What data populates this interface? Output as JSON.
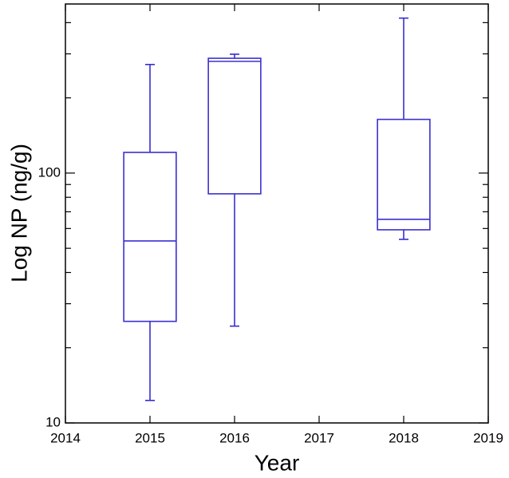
{
  "chart_data": {
    "type": "box",
    "x_label": "Year",
    "y_label": "Log NP (ng/g)",
    "x": [
      2015,
      2016,
      2018
    ],
    "min": [
      12.3,
      24.4,
      54.3
    ],
    "q1": [
      25.5,
      82.6,
      59.3
    ],
    "median": [
      53.5,
      280,
      65.3
    ],
    "q3": [
      121,
      288,
      164
    ],
    "max": [
      272,
      299,
      417
    ],
    "color": "#3a2fd0",
    "xlim": [
      2014,
      2019
    ],
    "xticks": [
      2014,
      2015,
      2016,
      2017,
      2018,
      2019
    ],
    "ylim": [
      10,
      475
    ],
    "yticks": [
      10,
      100
    ],
    "yminorticks": [
      20,
      30,
      40,
      50,
      60,
      70,
      80,
      90,
      200,
      300,
      400
    ],
    "log_y": true
  }
}
